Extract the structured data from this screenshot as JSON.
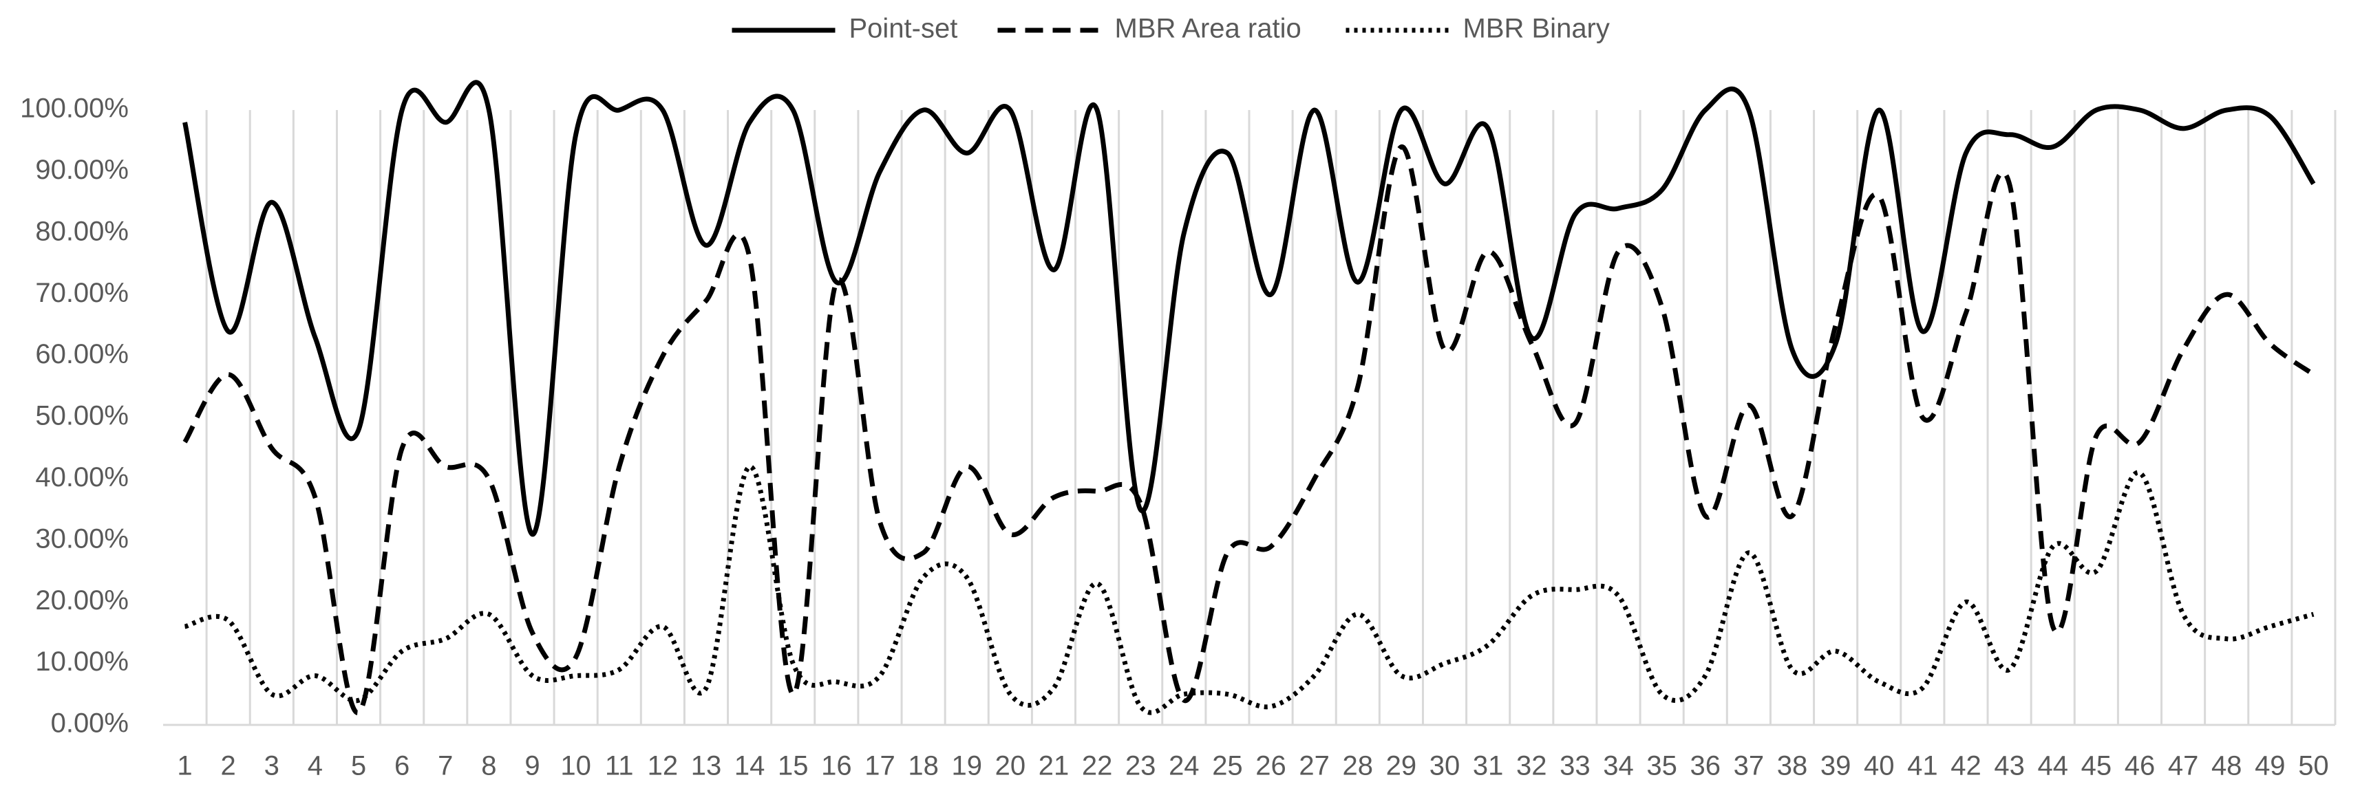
{
  "chart_data": {
    "type": "line",
    "categories": [
      "1",
      "2",
      "3",
      "4",
      "5",
      "6",
      "7",
      "8",
      "9",
      "10",
      "11",
      "12",
      "13",
      "14",
      "15",
      "16",
      "17",
      "18",
      "19",
      "20",
      "21",
      "22",
      "23",
      "24",
      "25",
      "26",
      "27",
      "28",
      "29",
      "30",
      "31",
      "32",
      "33",
      "34",
      "35",
      "36",
      "37",
      "38",
      "39",
      "40",
      "41",
      "42",
      "43",
      "44",
      "45",
      "46",
      "47",
      "48",
      "49",
      "50"
    ],
    "series": [
      {
        "name": "Point-set",
        "color": "#000000",
        "style": "solid",
        "values": [
          98,
          64,
          85,
          63,
          48,
          100,
          98,
          100,
          31,
          96,
          100,
          100,
          78,
          98,
          100,
          72,
          90,
          100,
          93,
          100,
          74,
          100,
          35,
          80,
          93,
          70,
          100,
          72,
          100,
          88,
          97,
          63,
          83,
          84,
          87,
          100,
          100,
          61,
          62,
          100,
          64,
          93,
          96,
          94,
          100,
          100,
          97,
          100,
          99,
          88
        ]
      },
      {
        "name": "MBR Area ratio",
        "color": "#000000",
        "style": "dashed",
        "values": [
          46,
          57,
          45,
          37,
          2,
          45,
          42,
          40,
          15,
          11,
          42,
          60,
          69,
          76,
          5,
          72,
          33,
          28,
          42,
          31,
          37,
          38,
          36,
          4,
          28,
          29,
          40,
          55,
          94,
          61,
          77,
          62,
          49,
          77,
          68,
          34,
          52,
          34,
          65,
          86,
          50,
          67,
          88,
          16,
          47,
          46,
          61,
          70,
          62,
          57
        ]
      },
      {
        "name": "MBR Binary",
        "color": "#000000",
        "style": "dotted",
        "values": [
          16,
          17,
          5,
          8,
          4,
          12,
          14,
          18,
          8,
          8,
          9,
          16,
          6,
          42,
          10,
          7,
          8,
          24,
          24,
          5,
          6,
          23,
          3,
          5,
          5,
          3,
          8,
          18,
          8,
          10,
          13,
          21,
          22,
          21,
          5,
          8,
          28,
          9,
          12,
          7,
          6,
          20,
          9,
          29,
          25,
          41,
          18,
          14,
          16,
          18
        ]
      }
    ],
    "ylim": [
      0,
      100
    ],
    "yticks": [
      {
        "value": 0,
        "label": "0.00%"
      },
      {
        "value": 10,
        "label": "10.00%"
      },
      {
        "value": 20,
        "label": "20.00%"
      },
      {
        "value": 30,
        "label": "30.00%"
      },
      {
        "value": 40,
        "label": "40.00%"
      },
      {
        "value": 50,
        "label": "50.00%"
      },
      {
        "value": 60,
        "label": "60.00%"
      },
      {
        "value": 70,
        "label": "70.00%"
      },
      {
        "value": 80,
        "label": "80.00%"
      },
      {
        "value": 90,
        "label": "90.00%"
      },
      {
        "value": 100,
        "label": "100.00%"
      }
    ],
    "grid": true,
    "legend": "top",
    "smooth": true
  }
}
